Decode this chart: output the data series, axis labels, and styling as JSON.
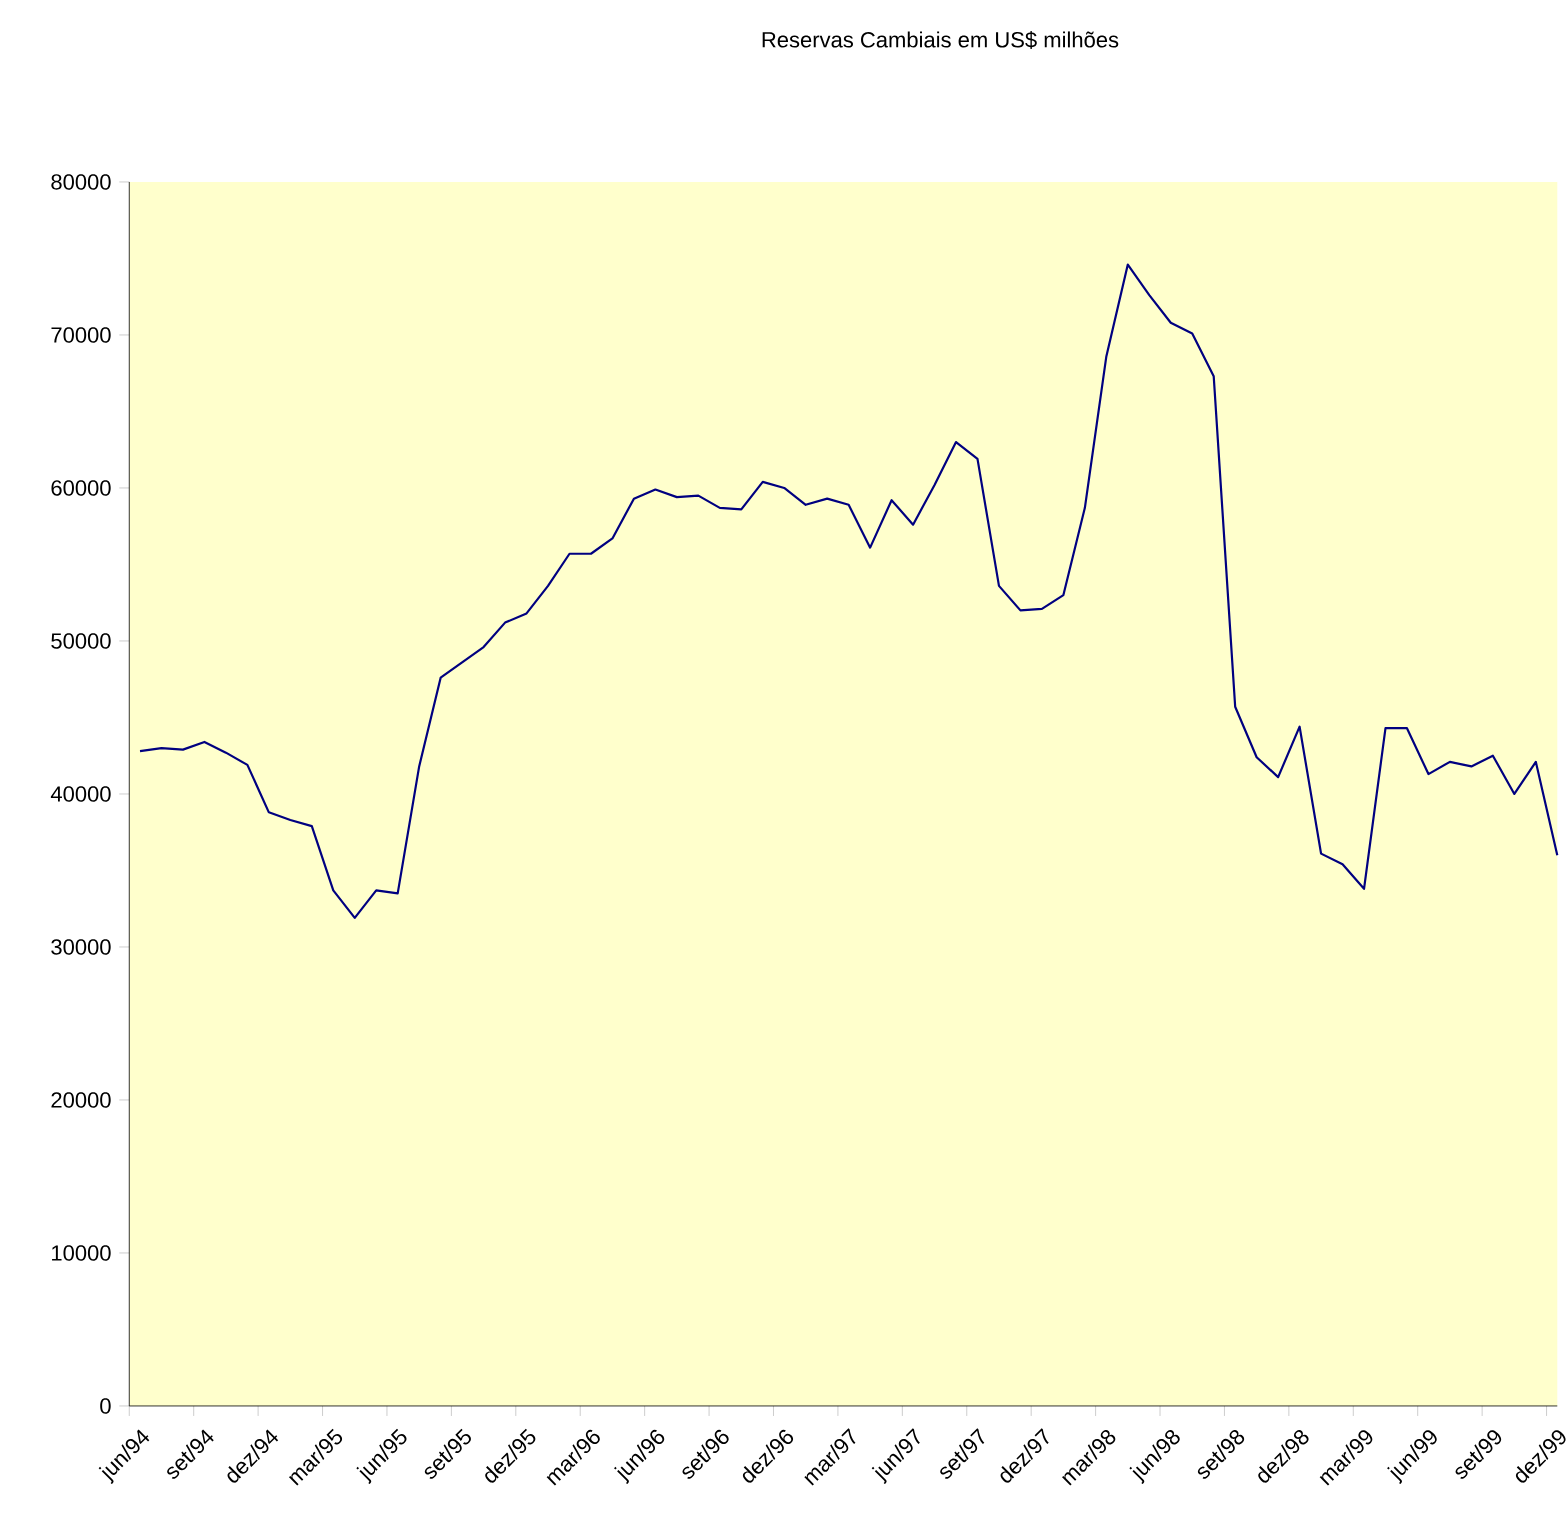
{
  "chart_data": {
    "type": "line",
    "title": "Reservas Cambiais em US$ milhões",
    "categories": [
      "jun/94",
      null,
      null,
      "set/94",
      null,
      null,
      "dez/94",
      null,
      null,
      "mar/95",
      null,
      null,
      "jun/95",
      null,
      null,
      "set/95",
      null,
      null,
      "dez/95",
      null,
      null,
      "mar/96",
      null,
      null,
      "jun/96",
      null,
      null,
      "set/96",
      null,
      null,
      "dez/96",
      null,
      null,
      "mar/97",
      null,
      null,
      "jun/97",
      null,
      null,
      "set/97",
      null,
      null,
      "dez/97",
      null,
      null,
      "mar/98",
      null,
      null,
      "jun/98",
      null,
      null,
      "set/98",
      null,
      null,
      "dez/98",
      null,
      null,
      "mar/99",
      null,
      null,
      "jun/99",
      null,
      null,
      "set/99",
      null,
      null,
      "dez/99"
    ],
    "values": [
      42800,
      43000,
      42900,
      43400,
      42700,
      41900,
      38800,
      38300,
      37900,
      33700,
      31900,
      33700,
      33500,
      41800,
      47600,
      48600,
      49600,
      51200,
      51800,
      53600,
      55700,
      55700,
      56700,
      59300,
      59900,
      59400,
      59500,
      58700,
      58600,
      60400,
      60000,
      58900,
      59300,
      58900,
      56100,
      59200,
      57600,
      60200,
      63000,
      61900,
      53600,
      52000,
      52100,
      53000,
      58700,
      68600,
      74600,
      72600,
      70800,
      70100,
      67300,
      45700,
      42400,
      41100,
      44400,
      36100,
      35400,
      33800,
      44300,
      44300,
      41300,
      42100,
      41800,
      42500,
      40000,
      42100,
      36000
    ],
    "color": "#000080",
    "ylim": [
      0,
      80000
    ],
    "yticks": [
      0,
      10000,
      20000,
      30000,
      40000,
      50000,
      60000,
      70000,
      80000
    ]
  }
}
